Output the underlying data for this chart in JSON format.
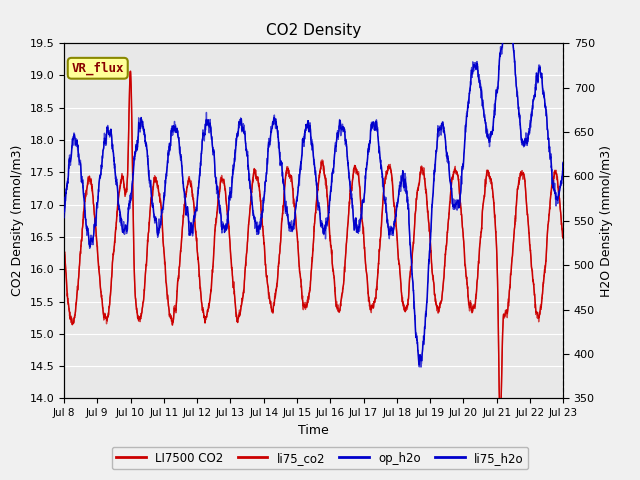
{
  "title": "CO2 Density",
  "xlabel": "Time",
  "ylabel_left": "CO2 Density (mmol/m3)",
  "ylabel_right": "H2O Density (mmol/m3)",
  "ylim_left": [
    14.0,
    19.5
  ],
  "ylim_right": [
    350,
    750
  ],
  "yticks_left": [
    14.0,
    14.5,
    15.0,
    15.5,
    16.0,
    16.5,
    17.0,
    17.5,
    18.0,
    18.5,
    19.0,
    19.5
  ],
  "yticks_right": [
    350,
    400,
    450,
    500,
    550,
    600,
    650,
    700,
    750
  ],
  "xticklabels": [
    "Jul 8",
    "Jul 9",
    "Jul 10",
    "Jul 11",
    "Jul 12",
    "Jul 13",
    "Jul 14",
    "Jul 15",
    "Jul 16",
    "Jul 17",
    "Jul 18",
    "Jul 19",
    "Jul 20",
    "Jul 21",
    "Jul 22",
    "Jul 23"
  ],
  "n_days": 15,
  "pts_per_day": 144,
  "bg_outer": "#f0f0f0",
  "bg_plot": "#e8e8e8",
  "stripe_color": "#d8d8d8",
  "grid_color": "#ffffff",
  "red_color": "#cc0000",
  "blue_color": "#0000cc",
  "vr_flux_bg": "#ffff99",
  "vr_flux_border": "#888800",
  "vr_flux_text": "#880000",
  "co2_base": 16.3,
  "co2_amp": 1.1,
  "h2o_base": 580,
  "h2o_amp": 60,
  "legend_labels": [
    "LI7500 CO2",
    "li75_co2",
    "op_h2o",
    "li75_h2o"
  ]
}
